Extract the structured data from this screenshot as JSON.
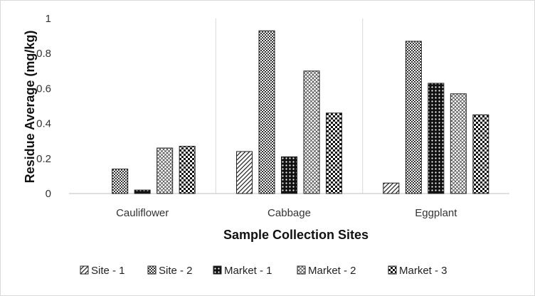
{
  "chart_data": {
    "type": "bar",
    "xlabel": "Sample Collection Sites",
    "ylabel": "Residue Average (mg/kg)",
    "ylim": [
      0,
      1
    ],
    "yticks": [
      "0",
      "0.2",
      "0.4",
      "0.6",
      "0.8",
      "1"
    ],
    "categories": [
      "Cauliflower",
      "Cabbage",
      "Eggplant"
    ],
    "series": [
      {
        "name": "Site - 1",
        "values": [
          0,
          0.24,
          0.06
        ]
      },
      {
        "name": "Site - 2",
        "values": [
          0.14,
          0.93,
          0.87
        ]
      },
      {
        "name": "Market - 1",
        "values": [
          0.02,
          0.21,
          0.63
        ]
      },
      {
        "name": "Market - 2",
        "values": [
          0.26,
          0.7,
          0.57
        ]
      },
      {
        "name": "Market - 3",
        "values": [
          0.27,
          0.46,
          0.45
        ]
      }
    ],
    "grid": "vertical category separators",
    "legend": "bottom"
  }
}
